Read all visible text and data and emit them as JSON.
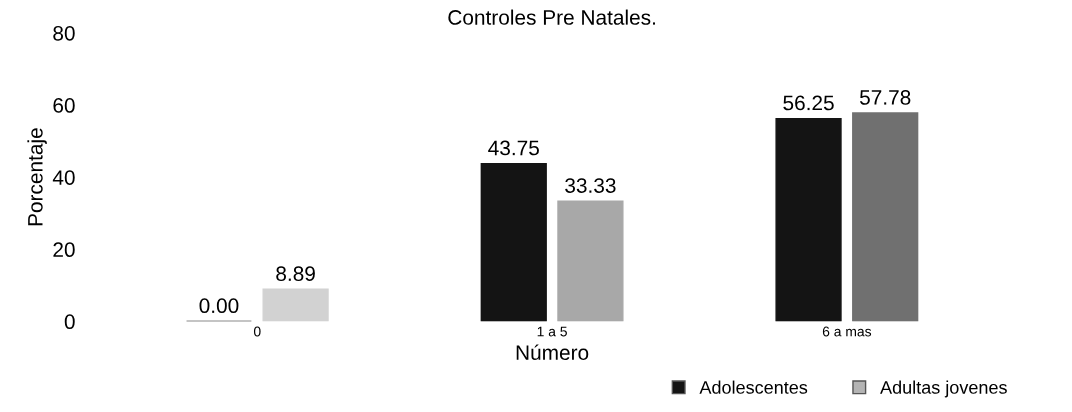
{
  "chart_data": {
    "type": "bar",
    "title": "Controles Pre Natales.",
    "xlabel": "Número",
    "ylabel": "Porcentaje",
    "categories": [
      "0",
      "1 a 5",
      "6 a mas"
    ],
    "series": [
      {
        "name": "Adolescentes",
        "color": "#141414",
        "values": [
          0.0,
          43.75,
          56.25
        ],
        "value_labels": [
          "0.00",
          "43.75",
          "56.25"
        ]
      },
      {
        "name": "Adultas jovenes",
        "color": "#b4b4b4",
        "colors": [
          "#d2d2d2",
          "#a8a8a8",
          "#707070"
        ],
        "values": [
          8.89,
          33.33,
          57.78
        ],
        "value_labels": [
          "8.89",
          "33.33",
          "57.78"
        ]
      }
    ],
    "ylim": [
      0,
      80
    ],
    "yticks": [
      0,
      20,
      40,
      60,
      80
    ],
    "grid": false,
    "legend": "bottom right"
  }
}
